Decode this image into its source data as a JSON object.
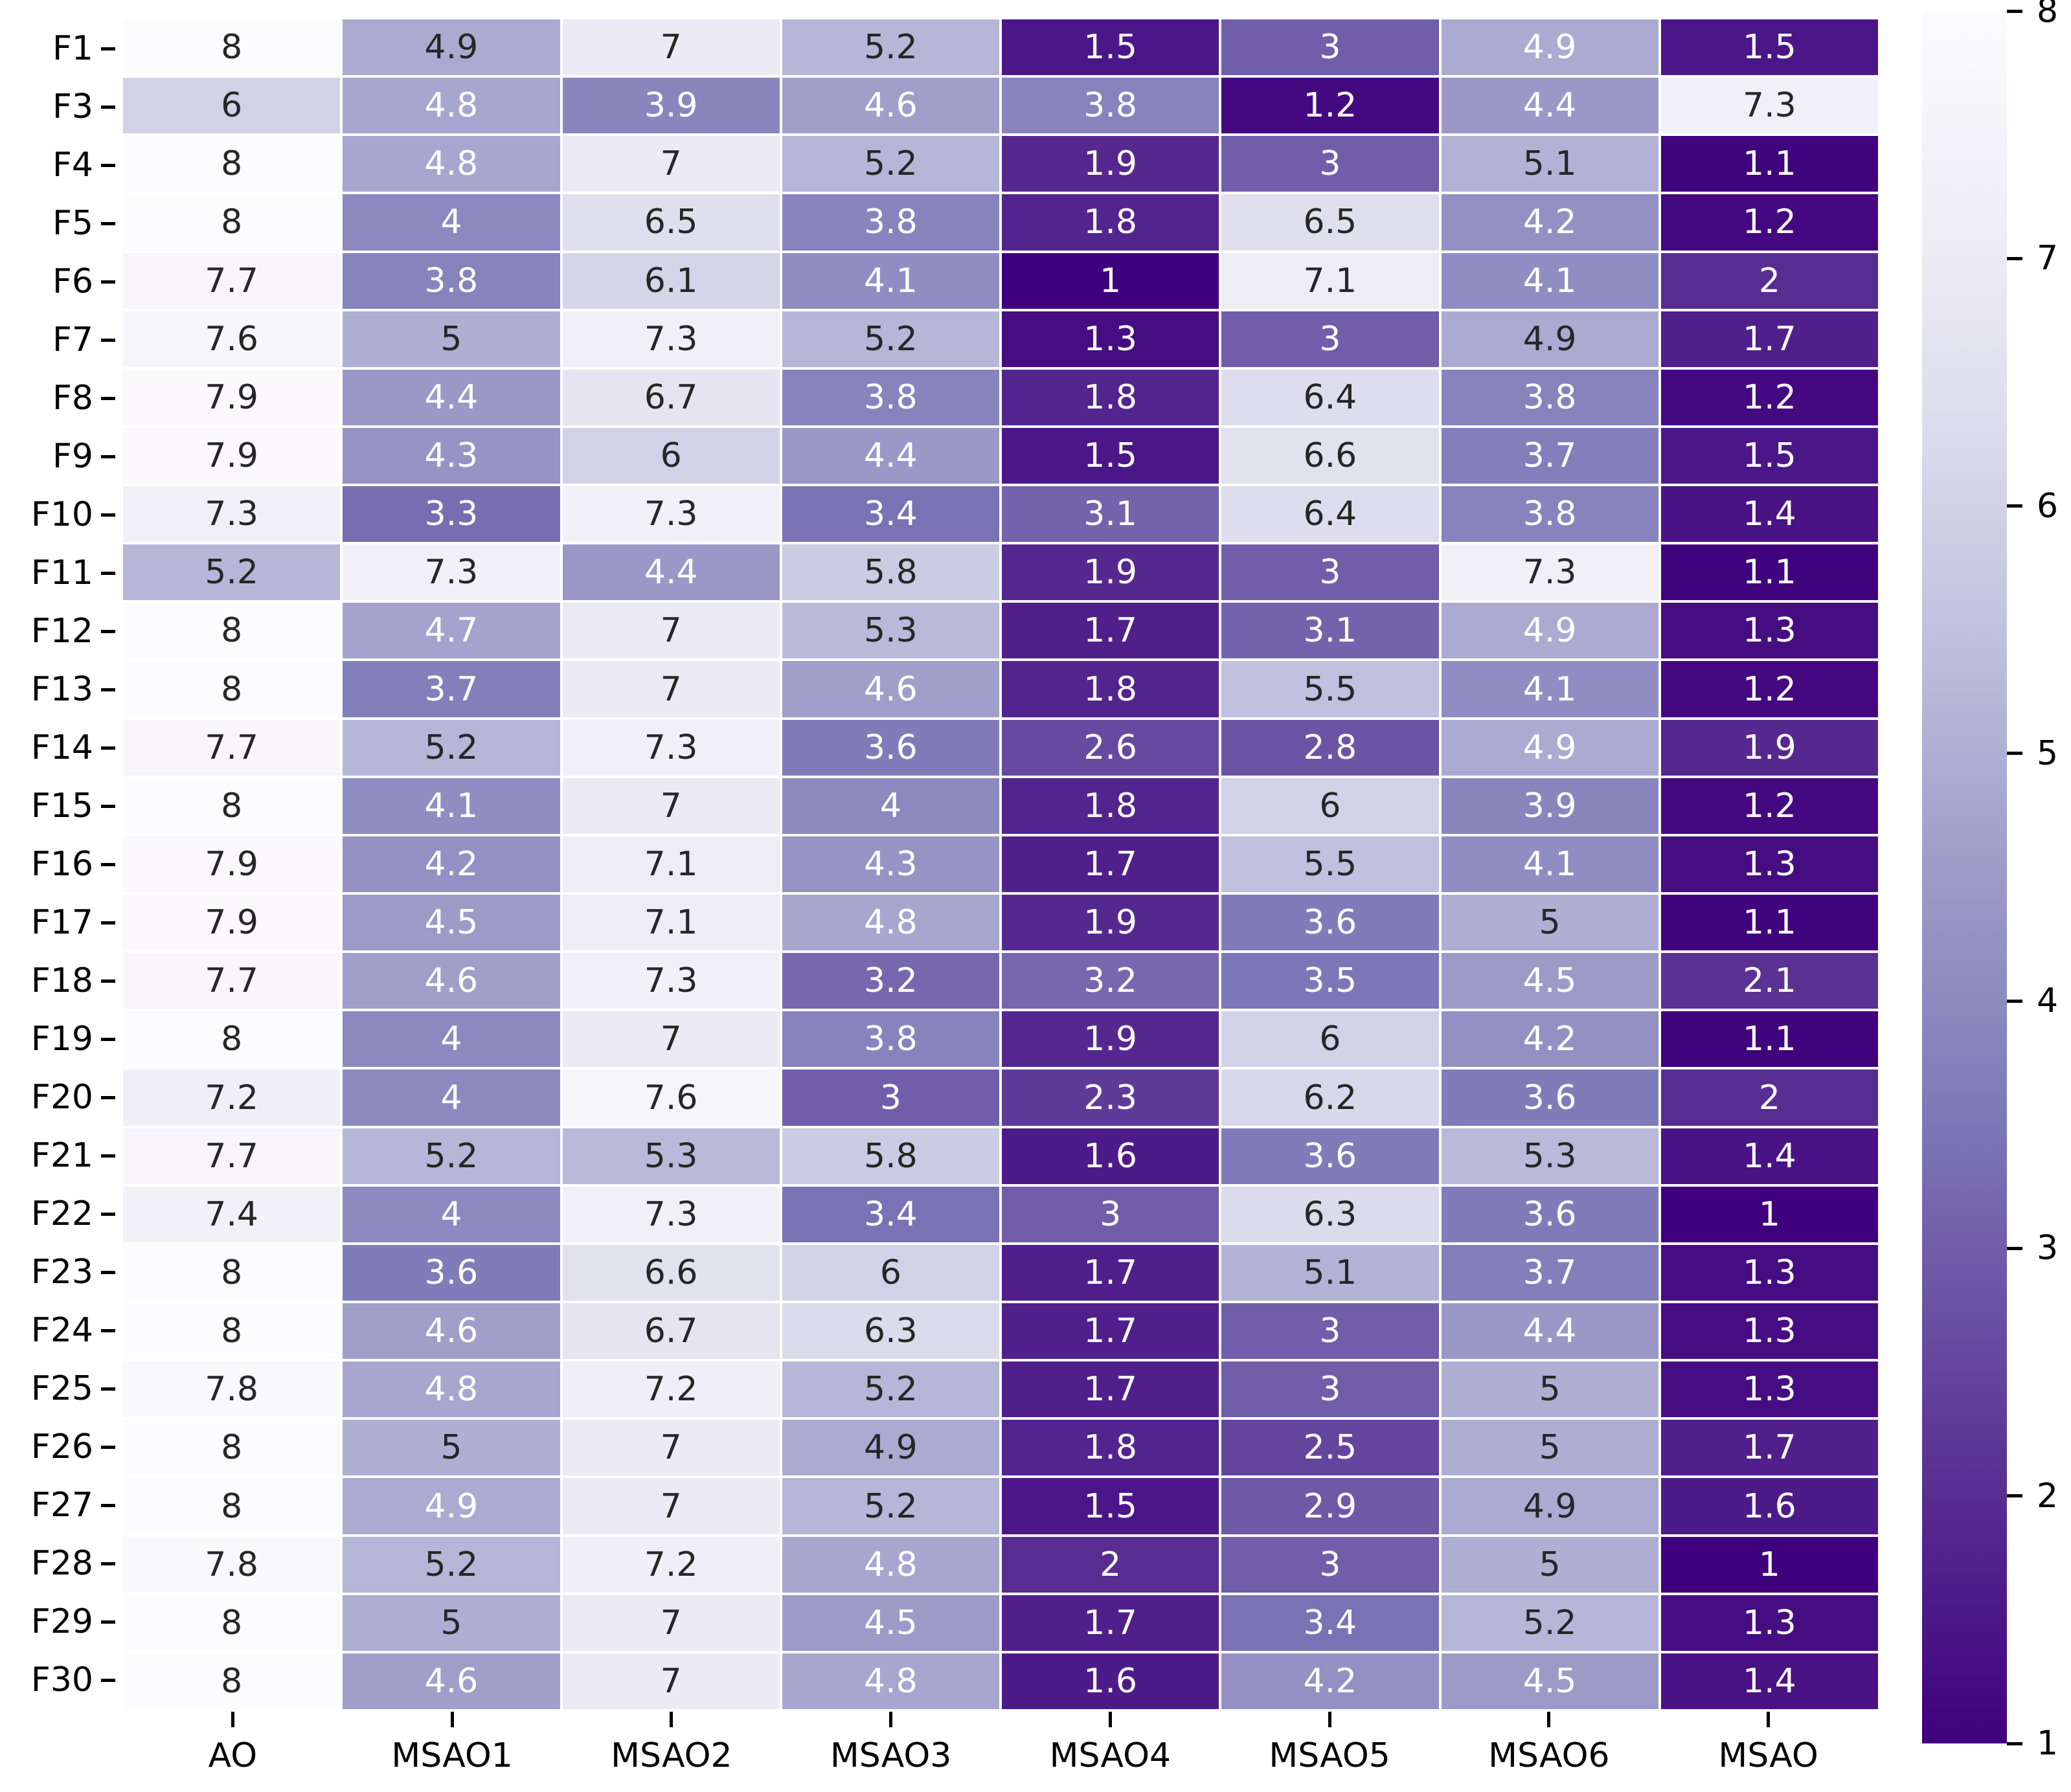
{
  "chart_data": {
    "type": "heatmap",
    "title": "",
    "xlabel": "",
    "ylabel": "",
    "columns": [
      "AO",
      "MSAO1",
      "MSAO2",
      "MSAO3",
      "MSAO4",
      "MSAO5",
      "MSAO6",
      "MSAO"
    ],
    "rows": [
      {
        "label": "F1",
        "values": [
          8,
          4.9,
          7,
          5.2,
          1.5,
          3,
          4.9,
          1.5
        ],
        "text": [
          "k",
          "k",
          "k",
          "k",
          "w",
          "w",
          "w",
          "w"
        ]
      },
      {
        "label": "F3",
        "values": [
          6,
          4.8,
          3.9,
          4.6,
          3.8,
          1.2,
          4.4,
          7.3
        ],
        "text": [
          "k",
          "w",
          "w",
          "w",
          "w",
          "w",
          "w",
          "k"
        ]
      },
      {
        "label": "F4",
        "values": [
          8,
          4.8,
          7,
          5.2,
          1.9,
          3,
          5.1,
          1.1
        ],
        "text": [
          "k",
          "w",
          "k",
          "k",
          "w",
          "w",
          "k",
          "w"
        ]
      },
      {
        "label": "F5",
        "values": [
          8,
          4,
          6.5,
          3.8,
          1.8,
          6.5,
          4.2,
          1.2
        ],
        "text": [
          "k",
          "w",
          "k",
          "w",
          "w",
          "k",
          "w",
          "w"
        ]
      },
      {
        "label": "F6",
        "values": [
          7.7,
          3.8,
          6.1,
          4.1,
          1,
          7.1,
          4.1,
          2
        ],
        "text": [
          "k",
          "w",
          "k",
          "w",
          "w",
          "k",
          "w",
          "w"
        ]
      },
      {
        "label": "F7",
        "values": [
          7.6,
          5,
          7.3,
          5.2,
          1.3,
          3,
          4.9,
          1.7
        ],
        "text": [
          "k",
          "k",
          "k",
          "k",
          "w",
          "w",
          "k",
          "w"
        ]
      },
      {
        "label": "F8",
        "values": [
          7.9,
          4.4,
          6.7,
          3.8,
          1.8,
          6.4,
          3.8,
          1.2
        ],
        "text": [
          "k",
          "w",
          "k",
          "w",
          "w",
          "k",
          "w",
          "w"
        ]
      },
      {
        "label": "F9",
        "values": [
          7.9,
          4.3,
          6,
          4.4,
          1.5,
          6.6,
          3.7,
          1.5
        ],
        "text": [
          "k",
          "w",
          "k",
          "w",
          "w",
          "k",
          "w",
          "w"
        ]
      },
      {
        "label": "F10",
        "values": [
          7.3,
          3.3,
          7.3,
          3.4,
          3.1,
          6.4,
          3.8,
          1.4
        ],
        "text": [
          "k",
          "w",
          "k",
          "w",
          "w",
          "k",
          "w",
          "w"
        ]
      },
      {
        "label": "F11",
        "values": [
          5.2,
          7.3,
          4.4,
          5.8,
          1.9,
          3,
          7.3,
          1.1
        ],
        "text": [
          "k",
          "k",
          "w",
          "k",
          "w",
          "w",
          "k",
          "w"
        ]
      },
      {
        "label": "F12",
        "values": [
          8,
          4.7,
          7,
          5.3,
          1.7,
          3.1,
          4.9,
          1.3
        ],
        "text": [
          "k",
          "w",
          "k",
          "k",
          "w",
          "w",
          "w",
          "w"
        ]
      },
      {
        "label": "F13",
        "values": [
          8,
          3.7,
          7,
          4.6,
          1.8,
          5.5,
          4.1,
          1.2
        ],
        "text": [
          "k",
          "w",
          "k",
          "w",
          "w",
          "k",
          "w",
          "w"
        ]
      },
      {
        "label": "F14",
        "values": [
          7.7,
          5.2,
          7.3,
          3.6,
          2.6,
          2.8,
          4.9,
          1.9
        ],
        "text": [
          "k",
          "k",
          "k",
          "w",
          "w",
          "w",
          "w",
          "w"
        ]
      },
      {
        "label": "F15",
        "values": [
          8,
          4.1,
          7,
          4,
          1.8,
          6,
          3.9,
          1.2
        ],
        "text": [
          "k",
          "w",
          "k",
          "w",
          "w",
          "k",
          "w",
          "w"
        ]
      },
      {
        "label": "F16",
        "values": [
          7.9,
          4.2,
          7.1,
          4.3,
          1.7,
          5.5,
          4.1,
          1.3
        ],
        "text": [
          "k",
          "w",
          "k",
          "w",
          "w",
          "k",
          "w",
          "w"
        ]
      },
      {
        "label": "F17",
        "values": [
          7.9,
          4.5,
          7.1,
          4.8,
          1.9,
          3.6,
          5,
          1.1
        ],
        "text": [
          "k",
          "w",
          "k",
          "w",
          "w",
          "w",
          "k",
          "w"
        ]
      },
      {
        "label": "F18",
        "values": [
          7.7,
          4.6,
          7.3,
          3.2,
          3.2,
          3.5,
          4.5,
          2.1
        ],
        "text": [
          "k",
          "w",
          "k",
          "w",
          "w",
          "w",
          "w",
          "w"
        ]
      },
      {
        "label": "F19",
        "values": [
          8,
          4,
          7,
          3.8,
          1.9,
          6,
          4.2,
          1.1
        ],
        "text": [
          "k",
          "w",
          "k",
          "w",
          "w",
          "k",
          "w",
          "w"
        ]
      },
      {
        "label": "F20",
        "values": [
          7.2,
          4,
          7.6,
          3,
          2.3,
          6.2,
          3.6,
          2
        ],
        "text": [
          "k",
          "w",
          "k",
          "w",
          "w",
          "k",
          "w",
          "w"
        ]
      },
      {
        "label": "F21",
        "values": [
          7.7,
          5.2,
          5.3,
          5.8,
          1.6,
          3.6,
          5.3,
          1.4
        ],
        "text": [
          "k",
          "k",
          "k",
          "k",
          "w",
          "w",
          "k",
          "w"
        ]
      },
      {
        "label": "F22",
        "values": [
          7.4,
          4,
          7.3,
          3.4,
          3,
          6.3,
          3.6,
          1
        ],
        "text": [
          "k",
          "w",
          "k",
          "w",
          "w",
          "k",
          "w",
          "w"
        ]
      },
      {
        "label": "F23",
        "values": [
          8,
          3.6,
          6.6,
          6,
          1.7,
          5.1,
          3.7,
          1.3
        ],
        "text": [
          "k",
          "w",
          "k",
          "k",
          "w",
          "k",
          "w",
          "w"
        ]
      },
      {
        "label": "F24",
        "values": [
          8,
          4.6,
          6.7,
          6.3,
          1.7,
          3,
          4.4,
          1.3
        ],
        "text": [
          "k",
          "w",
          "k",
          "k",
          "w",
          "w",
          "w",
          "w"
        ]
      },
      {
        "label": "F25",
        "values": [
          7.8,
          4.8,
          7.2,
          5.2,
          1.7,
          3,
          5,
          1.3
        ],
        "text": [
          "k",
          "w",
          "k",
          "k",
          "w",
          "w",
          "k",
          "w"
        ]
      },
      {
        "label": "F26",
        "values": [
          8,
          5,
          7,
          4.9,
          1.8,
          2.5,
          5,
          1.7
        ],
        "text": [
          "k",
          "k",
          "k",
          "k",
          "w",
          "w",
          "k",
          "w"
        ]
      },
      {
        "label": "F27",
        "values": [
          8,
          4.9,
          7,
          5.2,
          1.5,
          2.9,
          4.9,
          1.6
        ],
        "text": [
          "k",
          "w",
          "k",
          "k",
          "w",
          "w",
          "k",
          "w"
        ]
      },
      {
        "label": "F28",
        "values": [
          7.8,
          5.2,
          7.2,
          4.8,
          2,
          3,
          5,
          1
        ],
        "text": [
          "k",
          "k",
          "k",
          "w",
          "w",
          "w",
          "k",
          "w"
        ]
      },
      {
        "label": "F29",
        "values": [
          8,
          5,
          7,
          4.5,
          1.7,
          3.4,
          5.2,
          1.3
        ],
        "text": [
          "k",
          "k",
          "k",
          "w",
          "w",
          "w",
          "k",
          "w"
        ]
      },
      {
        "label": "F30",
        "values": [
          8,
          4.6,
          7,
          4.8,
          1.6,
          4.2,
          4.5,
          1.4
        ],
        "text": [
          "k",
          "w",
          "k",
          "w",
          "w",
          "w",
          "w",
          "w"
        ]
      }
    ],
    "vmin": 1,
    "vmax": 8,
    "colormap": "Purples_r",
    "colormap_anchors_light_to_dark": [
      [
        252,
        251,
        253
      ],
      [
        239,
        237,
        245
      ],
      [
        218,
        218,
        235
      ],
      [
        188,
        189,
        220
      ],
      [
        158,
        154,
        200
      ],
      [
        128,
        125,
        186
      ],
      [
        106,
        81,
        163
      ],
      [
        84,
        39,
        143
      ],
      [
        63,
        0,
        125
      ]
    ],
    "colorbar_ticks": [
      "8",
      "7",
      "6",
      "5",
      "4",
      "3",
      "2",
      "1"
    ],
    "legend_position": "right-colorbar",
    "grid_on": false,
    "annotation_dark_text_color": "#262626",
    "annotation_light_text_color": "#ffffff",
    "gridline_color": "#ffffff",
    "axis_tick_color": "#000000"
  }
}
